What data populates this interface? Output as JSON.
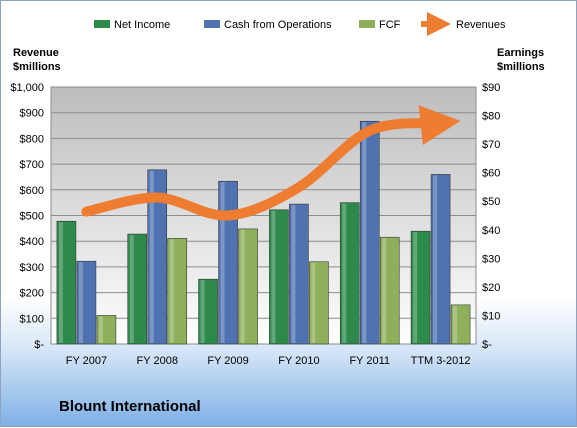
{
  "company": "Blount International",
  "chart_data": {
    "type": "bar",
    "categories": [
      "FY 2007",
      "FY 2008",
      "FY 2009",
      "FY 2010",
      "FY 2011",
      "TTM 3-2012"
    ],
    "left_axis": {
      "label_line1": "Revenue",
      "label_line2": "$millions",
      "ylim": [
        0,
        1000
      ],
      "ticks": [
        {
          "value": 0,
          "label": "$-"
        },
        {
          "value": 100,
          "label": "$100"
        },
        {
          "value": 200,
          "label": "$200"
        },
        {
          "value": 300,
          "label": "$300"
        },
        {
          "value": 400,
          "label": "$400"
        },
        {
          "value": 500,
          "label": "$500"
        },
        {
          "value": 600,
          "label": "$600"
        },
        {
          "value": 700,
          "label": "$700"
        },
        {
          "value": 800,
          "label": "$800"
        },
        {
          "value": 900,
          "label": "$900"
        },
        {
          "value": 1000,
          "label": "$1,000"
        }
      ]
    },
    "right_axis": {
      "label_line1": "Earnings",
      "label_line2": "$millions",
      "ylim": [
        0,
        90
      ],
      "ticks": [
        {
          "value": 0,
          "label": "$-"
        },
        {
          "value": 10,
          "label": "$10"
        },
        {
          "value": 20,
          "label": "$20"
        },
        {
          "value": 30,
          "label": "$30"
        },
        {
          "value": 40,
          "label": "$40"
        },
        {
          "value": 50,
          "label": "$50"
        },
        {
          "value": 60,
          "label": "$60"
        },
        {
          "value": 70,
          "label": "$70"
        },
        {
          "value": 80,
          "label": "$80"
        },
        {
          "value": 90,
          "label": "$90"
        }
      ]
    },
    "series": [
      {
        "name": "Net Income",
        "type": "bar",
        "axis": "right",
        "color": "#2e8a4a",
        "values": [
          43,
          38.5,
          22.7,
          47,
          49.5,
          39.5
        ]
      },
      {
        "name": "Cash from Operations",
        "type": "bar",
        "axis": "right",
        "color": "#4f73b0",
        "values": [
          29,
          61,
          57,
          49,
          78,
          59.4
        ]
      },
      {
        "name": "FCF",
        "type": "bar",
        "axis": "right",
        "color": "#8fb05a",
        "values": [
          10,
          37,
          40.3,
          28.8,
          37.4,
          13.7
        ]
      },
      {
        "name": "Revenues",
        "type": "line",
        "axis": "left",
        "color": "#ee7d32",
        "values": [
          515,
          570,
          500,
          610,
          830,
          860
        ]
      }
    ],
    "grid": true,
    "legend": "top"
  }
}
